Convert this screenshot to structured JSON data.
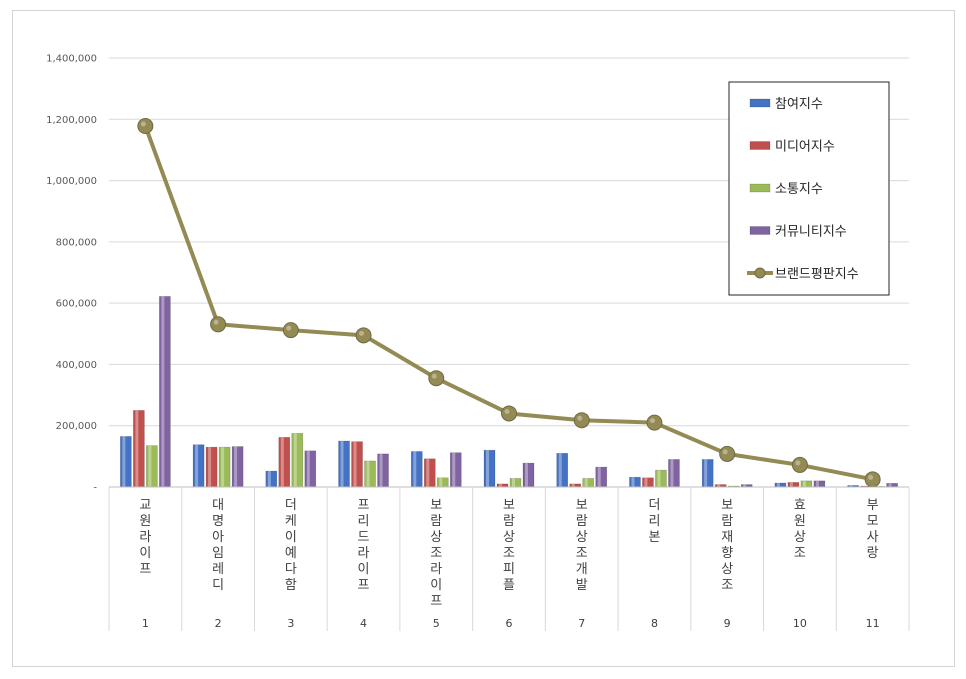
{
  "chart_data": {
    "type": "bar",
    "title": "",
    "xlabel": "",
    "ylabel": "",
    "ylim": [
      0,
      1400000
    ],
    "yticks": [
      0,
      200000,
      400000,
      600000,
      800000,
      1000000,
      1200000,
      1400000
    ],
    "ytick_labels": [
      "-",
      "200,000",
      "400,000",
      "600,000",
      "800,000",
      "1,000,000",
      "1,200,000",
      "1,400,000"
    ],
    "grid": true,
    "legend_position": "top-right",
    "categories": [
      "교원라이프",
      "대명아임레디",
      "더케이예다함",
      "프리드라이프",
      "보람상조라이프",
      "보람상조피플",
      "보람상조개발",
      "더리본",
      "보람재향상조",
      "효원상조",
      "부모사랑"
    ],
    "ranks": [
      "1",
      "2",
      "3",
      "4",
      "5",
      "6",
      "7",
      "8",
      "9",
      "10",
      "11"
    ],
    "series": [
      {
        "name": "참여지수",
        "kind": "bar",
        "color": "#4472C4",
        "values": [
          165000,
          138000,
          52000,
          150000,
          116000,
          120000,
          110000,
          32000,
          90000,
          13000,
          5000
        ]
      },
      {
        "name": "미디어지수",
        "kind": "bar",
        "color": "#C0504D",
        "values": [
          250000,
          130000,
          162000,
          148000,
          92000,
          10000,
          10000,
          30000,
          8000,
          15000,
          3000
        ]
      },
      {
        "name": "소통지수",
        "kind": "bar",
        "color": "#9BBB59",
        "values": [
          135000,
          130000,
          175000,
          85000,
          30000,
          28000,
          28000,
          55000,
          3000,
          20000,
          2000
        ]
      },
      {
        "name": "커뮤니티지수",
        "kind": "bar",
        "color": "#8064A2",
        "values": [
          622000,
          132000,
          118000,
          108000,
          112000,
          78000,
          65000,
          90000,
          8000,
          20000,
          12000
        ]
      },
      {
        "name": "브랜드평판지수",
        "kind": "line",
        "color": "#948A54",
        "values": [
          1178000,
          531000,
          512000,
          495000,
          355000,
          240000,
          218000,
          210000,
          108000,
          72000,
          25000
        ]
      }
    ]
  }
}
